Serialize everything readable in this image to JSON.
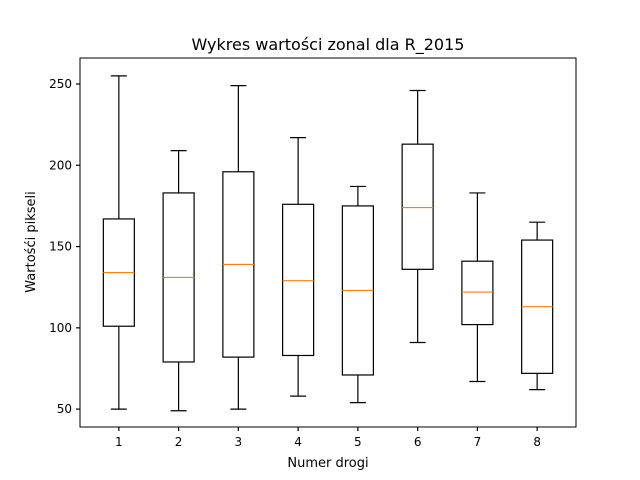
{
  "chart_data": {
    "type": "box",
    "title": "Wykres wartości zonal dla R_2015",
    "xlabel": "Numer drogi",
    "ylabel": "Wartośći pikseli",
    "categories": [
      "1",
      "2",
      "3",
      "4",
      "5",
      "6",
      "7",
      "8"
    ],
    "ylim": [
      39,
      266
    ],
    "yticks": [
      50,
      100,
      150,
      200,
      250
    ],
    "grid": false,
    "colors": {
      "box": "#000000",
      "median": "#ff7f0e"
    },
    "boxes": [
      {
        "label": "1",
        "whisker_low": 50,
        "q1": 101,
        "median": 134,
        "q3": 167,
        "whisker_high": 255
      },
      {
        "label": "2",
        "whisker_low": 49,
        "q1": 79,
        "median": 131,
        "q3": 183,
        "whisker_high": 209
      },
      {
        "label": "3",
        "whisker_low": 50,
        "q1": 82,
        "median": 139,
        "q3": 196,
        "whisker_high": 249
      },
      {
        "label": "4",
        "whisker_low": 58,
        "q1": 83,
        "median": 129,
        "q3": 176,
        "whisker_high": 217
      },
      {
        "label": "5",
        "whisker_low": 54,
        "q1": 71,
        "median": 123,
        "q3": 175,
        "whisker_high": 187
      },
      {
        "label": "6",
        "whisker_low": 91,
        "q1": 136,
        "median": 174,
        "q3": 213,
        "whisker_high": 246
      },
      {
        "label": "7",
        "whisker_low": 67,
        "q1": 102,
        "median": 122,
        "q3": 141,
        "whisker_high": 183
      },
      {
        "label": "8",
        "whisker_low": 62,
        "q1": 72,
        "median": 113,
        "q3": 154,
        "whisker_high": 165
      }
    ]
  }
}
